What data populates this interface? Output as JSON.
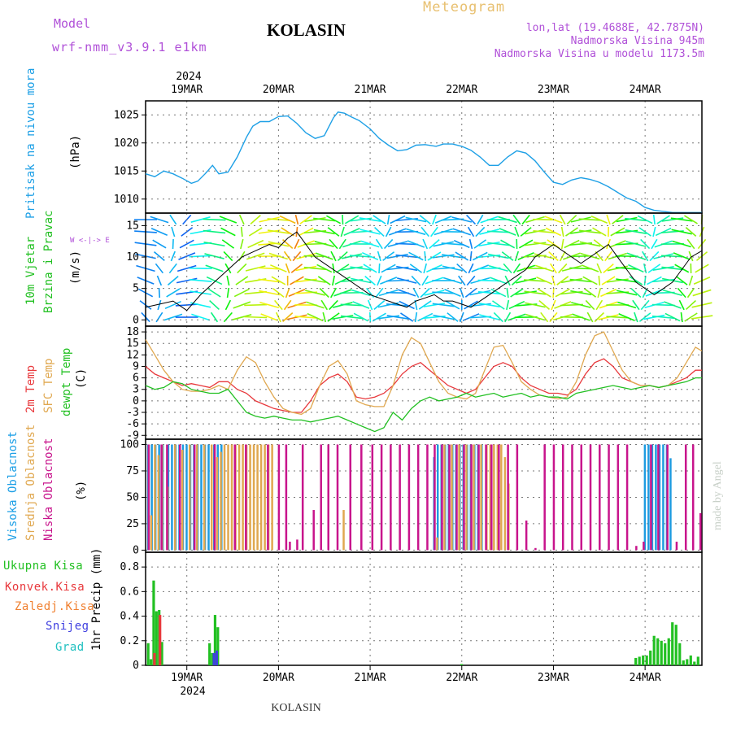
{
  "header": {
    "model_label": "Model",
    "model_value": "wrf-nmm_v3.9.1 e1km",
    "city": "KOLASIN",
    "title": "Meteogram",
    "lonlat": "lon,lat (19.4688E, 42.7875N)",
    "elevation": "Nadmorska Visina 945m",
    "model_elevation": "Nadmorska Visina u modelu 1173.5m",
    "credit": "made by Angel",
    "footer_city": "KOLASIN"
  },
  "axis": {
    "year": "2024",
    "days": [
      "19MAR",
      "20MAR",
      "21MAR",
      "22MAR",
      "23MAR",
      "24MAR"
    ]
  },
  "colors": {
    "pressure": "#1ea0e6",
    "temp2m": "#e8383c",
    "sfc": "#e0a850",
    "dewpt": "#22c022",
    "high_cloud": "#1e9be0",
    "mid_cloud": "#e0a850",
    "low_cloud": "#c8148c",
    "total_precip": "#22c022",
    "conv_precip": "#e8383c",
    "frozen_precip": "#f08030",
    "snow": "#4040e0",
    "graupel": "#20c0c0"
  },
  "panels": {
    "pressure": {
      "ylabel": "Pritisak na nivou mora",
      "unit": "(hPa)"
    },
    "wind": {
      "ylabel1": "10m Vjetar",
      "ylabel2": "Brzina i Pravac",
      "unit": "(m/s)",
      "compass": "W <-|-> E"
    },
    "temperature": {
      "label_t2": "2m Temp",
      "label_sfc": "SFC Temp",
      "label_dew": "dewpt Temp",
      "unit": "(C)"
    },
    "cloud": {
      "label_high": "Visoka Oblacnost",
      "label_mid": "Srednja Oblacnost",
      "label_low": "Niska Oblacnost",
      "unit": "(%)"
    },
    "precip": {
      "ylabel": "1hr Precip (mm)",
      "legend": [
        "Ukupna Kisa",
        "Konvek.Kisa",
        "Zaledj.Kisa",
        "Snijeg",
        "Grad"
      ]
    }
  },
  "chart_data": [
    {
      "type": "line",
      "name": "pressure",
      "ylim": [
        1007.5,
        1027.5
      ],
      "yticks": [
        1010,
        1015,
        1020,
        1025
      ],
      "xlim": [
        -0.45,
        5.62
      ],
      "x": [
        -0.45,
        -0.35,
        -0.25,
        -0.15,
        -0.05,
        0.05,
        0.12,
        0.2,
        0.28,
        0.35,
        0.45,
        0.55,
        0.65,
        0.72,
        0.8,
        0.9,
        1.0,
        1.1,
        1.2,
        1.3,
        1.4,
        1.5,
        1.6,
        1.65,
        1.72,
        1.8,
        1.88,
        2.0,
        2.1,
        2.2,
        2.3,
        2.4,
        2.5,
        2.6,
        2.72,
        2.8,
        2.9,
        3.0,
        3.1,
        3.2,
        3.3,
        3.4,
        3.5,
        3.6,
        3.7,
        3.8,
        3.9,
        4.0,
        4.1,
        4.2,
        4.3,
        4.4,
        4.5,
        4.6,
        4.7,
        4.8,
        4.9,
        5.0,
        5.1,
        5.2,
        5.3,
        5.4,
        5.5,
        5.62
      ],
      "y": [
        1014.5,
        1014.0,
        1015.0,
        1014.5,
        1013.7,
        1012.8,
        1013.2,
        1014.5,
        1016.0,
        1014.5,
        1014.8,
        1017.5,
        1021.0,
        1023.0,
        1023.8,
        1023.8,
        1024.7,
        1024.8,
        1023.5,
        1021.8,
        1020.8,
        1021.3,
        1024.5,
        1025.5,
        1025.3,
        1024.6,
        1024.0,
        1022.5,
        1020.8,
        1019.6,
        1018.6,
        1018.8,
        1019.6,
        1019.7,
        1019.4,
        1019.8,
        1019.8,
        1019.4,
        1018.7,
        1017.5,
        1016.0,
        1016.0,
        1017.5,
        1018.6,
        1018.2,
        1016.8,
        1014.8,
        1013.0,
        1012.6,
        1013.4,
        1013.8,
        1013.5,
        1013.0,
        1012.2,
        1011.2,
        1010.2,
        1009.6,
        1008.5,
        1008.0,
        1007.8,
        1007.6,
        1007.6,
        1007.6,
        1007.6
      ]
    },
    {
      "type": "line",
      "name": "wind",
      "ylim": [
        -1,
        17
      ],
      "yticks": [
        0,
        5,
        10,
        15
      ],
      "x": [
        -0.45,
        -0.3,
        -0.15,
        0.0,
        0.15,
        0.3,
        0.45,
        0.6,
        0.75,
        0.9,
        1.0,
        1.1,
        1.2,
        1.3,
        1.4,
        1.5,
        1.6,
        1.7,
        1.8,
        1.9,
        2.0,
        2.1,
        2.2,
        2.3,
        2.4,
        2.5,
        2.6,
        2.7,
        2.8,
        2.9,
        3.0,
        3.1,
        3.2,
        3.3,
        3.4,
        3.5,
        3.6,
        3.7,
        3.8,
        3.9,
        4.0,
        4.1,
        4.2,
        4.3,
        4.4,
        4.5,
        4.6,
        4.7,
        4.8,
        4.9,
        5.0,
        5.1,
        5.2,
        5.3,
        5.4,
        5.5,
        5.62
      ],
      "series": [
        {
          "name": "speed",
          "values": [
            2,
            2.5,
            3,
            1.5,
            4,
            6,
            8,
            10,
            11,
            12,
            11.5,
            13,
            14,
            12,
            10,
            9,
            8,
            7,
            6,
            5,
            4,
            3.5,
            3,
            2.5,
            2,
            3,
            3.5,
            4,
            3,
            3,
            2.5,
            2,
            3,
            4,
            5,
            6,
            7,
            8,
            10,
            11,
            12,
            11,
            10,
            9,
            10,
            11,
            12,
            10,
            8,
            6,
            5,
            4,
            5,
            6,
            8,
            10,
            11
          ]
        }
      ]
    },
    {
      "type": "line",
      "name": "temperature",
      "ylim": [
        -10,
        19.5
      ],
      "yticks": [
        -9,
        -6,
        -3,
        0,
        3,
        6,
        9,
        12,
        15,
        18
      ],
      "x": [
        -0.45,
        -0.35,
        -0.25,
        -0.15,
        -0.05,
        0.05,
        0.15,
        0.25,
        0.35,
        0.45,
        0.55,
        0.65,
        0.75,
        0.85,
        0.95,
        1.05,
        1.15,
        1.25,
        1.35,
        1.45,
        1.55,
        1.65,
        1.75,
        1.85,
        1.95,
        2.05,
        2.15,
        2.25,
        2.35,
        2.45,
        2.55,
        2.65,
        2.75,
        2.85,
        2.95,
        3.05,
        3.15,
        3.25,
        3.35,
        3.45,
        3.55,
        3.65,
        3.75,
        3.85,
        3.95,
        4.05,
        4.15,
        4.25,
        4.35,
        4.45,
        4.55,
        4.65,
        4.75,
        4.85,
        4.95,
        5.05,
        5.15,
        5.25,
        5.35,
        5.45,
        5.55,
        5.62
      ],
      "series": [
        {
          "name": "2m Temp",
          "values": [
            9,
            7,
            6,
            5,
            4,
            4.5,
            4,
            3.5,
            5,
            5,
            3,
            2,
            0,
            -1,
            -2,
            -2.5,
            -3,
            -3,
            0,
            4,
            6,
            7,
            5,
            1,
            0.5,
            1,
            2,
            4,
            7,
            9,
            10,
            8,
            6,
            4,
            3,
            2,
            3,
            6,
            9,
            10,
            9,
            6,
            4,
            3,
            2,
            2,
            1.5,
            3,
            7,
            10,
            11,
            9,
            6,
            5,
            4,
            4,
            3.5,
            4,
            5,
            6,
            8,
            8
          ]
        },
        {
          "name": "SFC Temp",
          "values": [
            16,
            12,
            8,
            5,
            3,
            2.5,
            2.5,
            3,
            4,
            3,
            8,
            11.5,
            10,
            5,
            1,
            -2,
            -3,
            -3.5,
            -2,
            4,
            9,
            10.5,
            7,
            0,
            -1,
            -1.5,
            -1.5,
            4,
            12,
            16.5,
            15,
            10,
            5,
            2,
            1,
            0.5,
            2,
            8,
            14,
            14.5,
            10,
            5,
            3,
            1.5,
            1,
            0.5,
            1,
            5,
            12,
            17,
            18,
            13,
            8,
            5,
            4,
            4,
            3.5,
            4,
            6,
            10,
            14,
            13
          ]
        },
        {
          "name": "dewpt Temp",
          "values": [
            4,
            3,
            3.5,
            5,
            4.5,
            3,
            2.5,
            2,
            2,
            3,
            0,
            -3,
            -4,
            -4.5,
            -4,
            -4.5,
            -5,
            -5,
            -5.5,
            -5,
            -4.5,
            -4,
            -5,
            -6,
            -7,
            -8,
            -7,
            -3,
            -5,
            -2,
            0,
            1,
            0,
            0.5,
            1,
            2,
            1,
            1.5,
            2,
            1,
            1.5,
            2,
            1,
            1.5,
            1,
            1,
            0.5,
            2,
            2.5,
            3,
            3.5,
            4,
            3.5,
            3,
            3.5,
            4,
            3.5,
            4,
            4.5,
            5,
            6,
            6
          ]
        }
      ]
    },
    {
      "type": "bar",
      "name": "cloud",
      "ylim": [
        -2,
        105
      ],
      "yticks": [
        0,
        25,
        50,
        75,
        100
      ],
      "series": [
        {
          "name": "Visoka Oblacnost",
          "x": [
            -0.42,
            -0.38,
            -0.34,
            -0.3,
            -0.26,
            -0.2,
            -0.16,
            -0.12,
            -0.08,
            -0.04,
            0.0,
            0.04,
            0.08,
            0.12,
            0.16,
            0.2,
            0.24,
            0.3,
            0.34,
            0.38,
            2.7,
            2.74,
            2.78,
            2.82,
            2.86,
            2.9,
            2.94,
            2.98,
            3.02,
            3.06,
            3.1,
            3.14,
            3.18,
            3.22,
            5.0,
            5.04,
            5.08,
            5.12,
            5.16,
            5.2,
            5.24,
            5.28
          ],
          "values": [
            100,
            100,
            100,
            100,
            100,
            100,
            100,
            100,
            100,
            100,
            100,
            100,
            100,
            100,
            100,
            100,
            100,
            100,
            100,
            100,
            88,
            100,
            100,
            100,
            100,
            100,
            100,
            100,
            100,
            100,
            100,
            100,
            100,
            100,
            100,
            100,
            100,
            100,
            100,
            100,
            100,
            87
          ]
        },
        {
          "name": "Srednja Oblacnost",
          "x": [
            -0.4,
            -0.36,
            -0.32,
            -0.28,
            -0.22,
            -0.14,
            -0.06,
            0.02,
            0.1,
            0.18,
            0.26,
            0.32,
            0.36,
            0.4,
            0.44,
            0.48,
            0.52,
            0.56,
            0.6,
            0.64,
            0.68,
            0.72,
            0.76,
            0.8,
            0.84,
            0.88,
            0.92,
            1.7,
            2.72,
            2.8,
            2.88,
            2.96,
            3.04,
            3.12,
            3.2,
            3.26,
            3.3,
            3.34,
            3.38,
            3.42,
            3.46,
            3.5
          ],
          "values": [
            33,
            100,
            90,
            100,
            60,
            100,
            95,
            100,
            100,
            100,
            100,
            88,
            93,
            100,
            100,
            100,
            100,
            100,
            100,
            100,
            100,
            100,
            100,
            100,
            100,
            100,
            100,
            38,
            12,
            100,
            100,
            100,
            100,
            100,
            100,
            100,
            100,
            100,
            100,
            100,
            88,
            63
          ]
        },
        {
          "name": "Niska Oblacnost",
          "x": [
            -0.44,
            -0.3,
            -0.24,
            -0.1,
            0.06,
            0.28,
            0.5,
            0.62,
            0.86,
            0.98,
            1.06,
            1.1,
            1.18,
            1.24,
            1.36,
            1.44,
            1.52,
            1.62,
            1.76,
            1.88,
            2.0,
            2.1,
            2.2,
            2.3,
            2.4,
            2.5,
            2.6,
            2.68,
            2.76,
            2.84,
            2.92,
            3.0,
            3.08,
            3.16,
            3.24,
            3.3,
            3.38,
            3.48,
            3.58,
            3.68,
            3.78,
            3.88,
            3.98,
            4.08,
            4.18,
            4.28,
            4.38,
            4.48,
            4.58,
            4.68,
            4.78,
            4.88,
            4.96,
            5.04,
            5.12,
            5.22,
            5.32,
            5.42,
            5.5,
            5.58
          ],
          "values": [
            100,
            100,
            100,
            100,
            100,
            100,
            100,
            100,
            100,
            100,
            100,
            8,
            10,
            100,
            38,
            100,
            100,
            100,
            100,
            100,
            100,
            100,
            100,
            100,
            100,
            100,
            100,
            100,
            100,
            100,
            100,
            100,
            100,
            100,
            100,
            100,
            100,
            100,
            100,
            28,
            2,
            100,
            100,
            100,
            100,
            100,
            100,
            100,
            100,
            100,
            100,
            4,
            8,
            100,
            100,
            100,
            8,
            100,
            100,
            35
          ]
        }
      ]
    },
    {
      "type": "bar",
      "name": "precip",
      "ylim": [
        0,
        0.92
      ],
      "yticks": [
        0,
        0.2,
        0.4,
        0.6,
        0.8
      ],
      "series": [
        {
          "name": "Ukupna Kisa",
          "x": [
            -0.42,
            -0.39,
            -0.36,
            -0.33,
            -0.3,
            -0.27,
            0.25,
            0.28,
            0.31,
            0.34,
            3.0,
            4.9,
            4.94,
            4.98,
            5.02,
            5.06,
            5.1,
            5.14,
            5.18,
            5.22,
            5.26,
            5.3,
            5.34,
            5.38,
            5.42,
            5.46,
            5.5,
            5.54,
            5.58
          ],
          "values": [
            0.18,
            0.05,
            0.69,
            0.44,
            0.45,
            0.19,
            0.18,
            0.1,
            0.41,
            0.31,
            0.01,
            0.06,
            0.07,
            0.08,
            0.08,
            0.12,
            0.24,
            0.22,
            0.2,
            0.18,
            0.22,
            0.35,
            0.33,
            0.18,
            0.04,
            0.05,
            0.08,
            0.03,
            0.07
          ]
        },
        {
          "name": "Konvek.Kisa",
          "x": [
            -0.36,
            -0.3
          ],
          "values": [
            0.1,
            0.41
          ]
        },
        {
          "name": "Snijeg",
          "x": [
            0.28,
            0.31
          ],
          "values": [
            0.1,
            0.12
          ]
        }
      ]
    }
  ]
}
